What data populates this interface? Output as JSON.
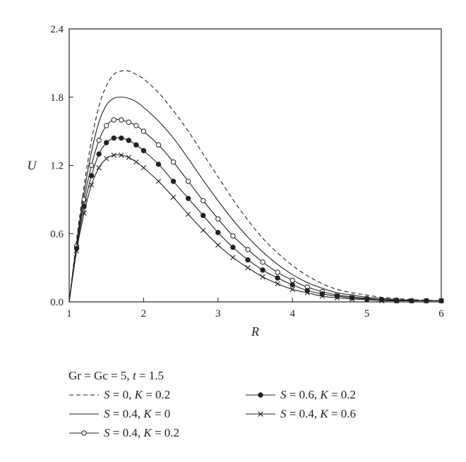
{
  "chart_data": {
    "type": "line",
    "xlabel": "R",
    "ylabel": "U",
    "xlim": [
      1,
      6
    ],
    "ylim": [
      0,
      2.4
    ],
    "xticks": [
      "1",
      "2",
      "3",
      "4",
      "5",
      "6"
    ],
    "yticks": [
      "0.0",
      "0.6",
      "1.2",
      "1.8",
      "2.4"
    ],
    "legend_title": "Gr = Gc = 5, t = 1.5",
    "legend_title_parts": [
      "Gr = Gc = 5, ",
      "t",
      " = 1.5"
    ],
    "x": [
      1.0,
      1.1,
      1.2,
      1.3,
      1.4,
      1.5,
      1.6,
      1.7,
      1.8,
      1.9,
      2.0,
      2.2,
      2.4,
      2.6,
      2.8,
      3.0,
      3.2,
      3.4,
      3.6,
      3.8,
      4.0,
      4.2,
      4.4,
      4.6,
      4.8,
      5.0,
      5.2,
      5.4,
      5.6,
      5.8,
      6.0
    ],
    "series": [
      {
        "name": "S = 0, K = 0.2",
        "parts": [
          "S",
          " = 0, ",
          "K",
          " = 0.2"
        ],
        "style": "dashed",
        "marker": "none",
        "values": [
          0.0,
          0.55,
          1.02,
          1.42,
          1.72,
          1.9,
          2.0,
          2.03,
          2.03,
          2.0,
          1.96,
          1.84,
          1.68,
          1.5,
          1.3,
          1.1,
          0.9,
          0.72,
          0.56,
          0.43,
          0.32,
          0.23,
          0.16,
          0.11,
          0.08,
          0.06,
          0.04,
          0.03,
          0.02,
          0.015,
          0.01
        ]
      },
      {
        "name": "S = 0.4, K = 0",
        "parts": [
          "S",
          " = 0.4, ",
          "K",
          " = 0"
        ],
        "style": "solid",
        "marker": "none",
        "values": [
          0.0,
          0.52,
          0.96,
          1.32,
          1.58,
          1.73,
          1.79,
          1.8,
          1.79,
          1.76,
          1.71,
          1.59,
          1.44,
          1.26,
          1.07,
          0.89,
          0.72,
          0.57,
          0.44,
          0.33,
          0.24,
          0.17,
          0.12,
          0.08,
          0.06,
          0.04,
          0.03,
          0.02,
          0.015,
          0.01,
          0.01
        ]
      },
      {
        "name": "S = 0.4, K = 0.2",
        "parts": [
          "S",
          " = 0.4, ",
          "K",
          " = 0.2"
        ],
        "style": "solid",
        "marker": "open-circle",
        "values": [
          0.0,
          0.49,
          0.9,
          1.2,
          1.42,
          1.55,
          1.6,
          1.6,
          1.58,
          1.55,
          1.5,
          1.38,
          1.23,
          1.06,
          0.89,
          0.73,
          0.58,
          0.46,
          0.35,
          0.26,
          0.19,
          0.13,
          0.09,
          0.06,
          0.045,
          0.03,
          0.02,
          0.015,
          0.01,
          0.01,
          0.01
        ]
      },
      {
        "name": "S = 0.6, K = 0.2",
        "parts": [
          "S",
          " = 0.6, ",
          "K",
          " = 0.2"
        ],
        "style": "solid",
        "marker": "filled-circle",
        "values": [
          0.0,
          0.47,
          0.84,
          1.11,
          1.3,
          1.4,
          1.44,
          1.44,
          1.42,
          1.38,
          1.33,
          1.21,
          1.06,
          0.91,
          0.76,
          0.61,
          0.48,
          0.37,
          0.28,
          0.21,
          0.15,
          0.1,
          0.07,
          0.05,
          0.035,
          0.025,
          0.02,
          0.01,
          0.01,
          0.01,
          0.01
        ]
      },
      {
        "name": "S = 0.4, K = 0.6",
        "parts": [
          "S",
          " = 0.4, ",
          "K",
          " = 0.6"
        ],
        "style": "solid",
        "marker": "x",
        "values": [
          0.0,
          0.45,
          0.78,
          1.03,
          1.18,
          1.26,
          1.29,
          1.29,
          1.27,
          1.23,
          1.18,
          1.06,
          0.92,
          0.77,
          0.63,
          0.5,
          0.39,
          0.3,
          0.22,
          0.16,
          0.11,
          0.08,
          0.05,
          0.035,
          0.025,
          0.02,
          0.01,
          0.01,
          0.01,
          0.01,
          0.01
        ]
      }
    ],
    "legend_layout": [
      0,
      3,
      1,
      4,
      2
    ],
    "grid": false,
    "legend_placement": "below"
  }
}
